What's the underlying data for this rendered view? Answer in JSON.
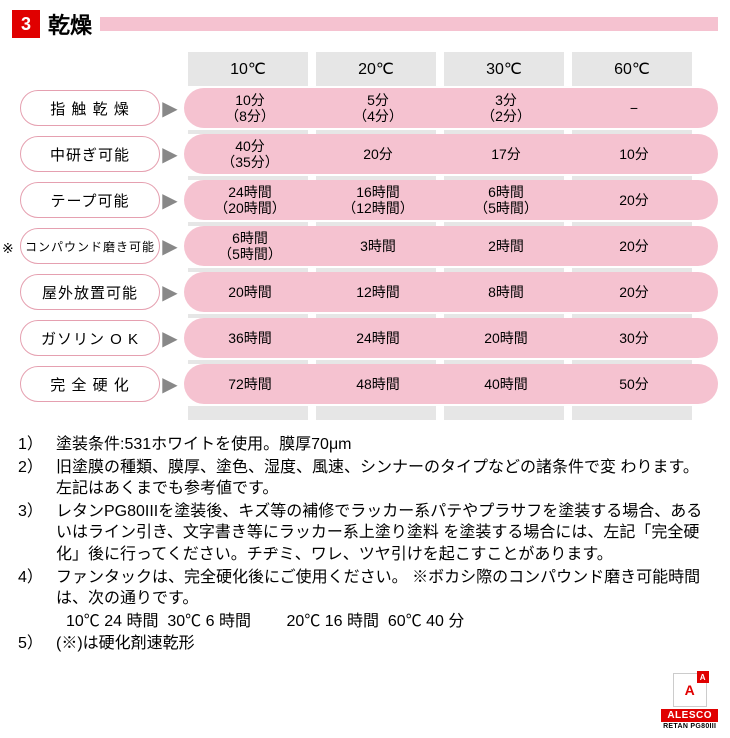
{
  "header": {
    "number": "3",
    "title": "乾燥"
  },
  "table": {
    "columns": [
      "10℃",
      "20℃",
      "30℃",
      "60℃"
    ],
    "rows": [
      {
        "label": "指 触 乾 燥",
        "note": "",
        "cells": [
          "10分\n（8分）",
          "5分\n（4分）",
          "3分\n（2分）",
          "−"
        ]
      },
      {
        "label": "中研ぎ可能",
        "note": "",
        "cells": [
          "40分\n（35分）",
          "20分",
          "17分",
          "10分"
        ]
      },
      {
        "label": "テープ可能",
        "note": "",
        "cells": [
          "24時間\n（20時間）",
          "16時間\n（12時間）",
          "6時間\n（5時間）",
          "20分"
        ]
      },
      {
        "label": "コンパウンド磨き可能",
        "note": "※",
        "cells": [
          "6時間\n（5時間）",
          "3時間",
          "2時間",
          "20分"
        ]
      },
      {
        "label": "屋外放置可能",
        "note": "",
        "cells": [
          "20時間",
          "12時間",
          "8時間",
          "20分"
        ]
      },
      {
        "label": "ガソリン O K",
        "note": "",
        "cells": [
          "36時間",
          "24時間",
          "20時間",
          "30分"
        ]
      },
      {
        "label": "完 全 硬 化",
        "note": "",
        "cells": [
          "72時間",
          "48時間",
          "40時間",
          "50分"
        ]
      }
    ]
  },
  "notes": [
    {
      "num": "1）",
      "text": "塗装条件:531ホワイトを使用。膜厚70μm"
    },
    {
      "num": "2）",
      "text": "旧塗膜の種類、膜厚、塗色、湿度、風速、シンナーのタイプなどの諸条件で変 わります。左記はあくまでも参考値です。"
    },
    {
      "num": "3）",
      "text": "レタンPG80IIIを塗装後、キズ等の補修でラッカー系パテやプラサフを塗装する場合、あるいはライン引き、文字書き等にラッカー系上塗り塗料 を塗装する場合には、左記「完全硬化」後に行ってください。チヂミ、ワレ、ツヤ引けを起こすことがあります。"
    },
    {
      "num": "4）",
      "text": "ファンタックは、完全硬化後にご使用ください。 ※ボカシ際のコンパウンド磨き可能時間は、次の通りです。"
    },
    {
      "num": "",
      "text": "10℃ 24 時間  30℃ 6 時間        20℃ 16 時間  60℃ 40 分"
    },
    {
      "num": "5）",
      "text": "(※)は硬化剤速乾形"
    }
  ],
  "logo": {
    "mark": "A",
    "sup": "A",
    "brand": "ALESCO",
    "product": "RETAN PG80III"
  },
  "colors": {
    "pink": "#f5c2d0",
    "pinkBorder": "#e5a0b0",
    "red": "#e00000",
    "grey": "#e6e6e6"
  }
}
